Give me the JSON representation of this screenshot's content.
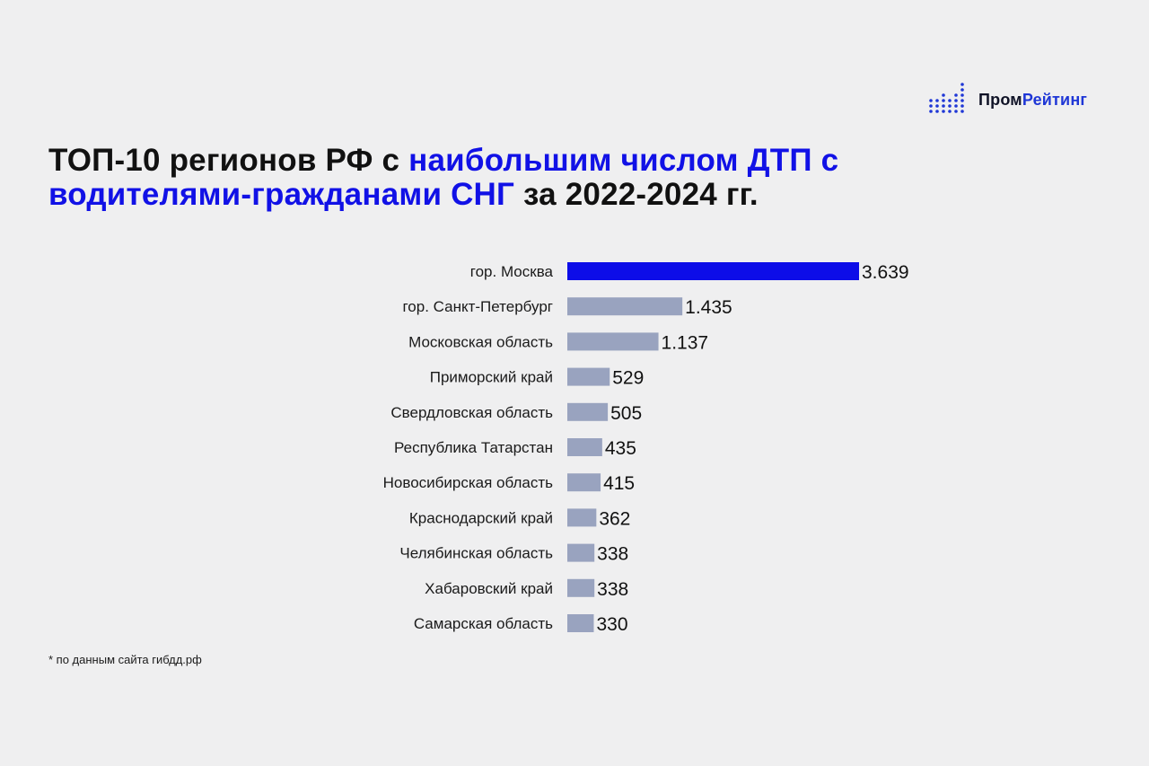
{
  "brand": {
    "name_part1": "Пром",
    "name_part2": "Рейтинг",
    "colors": {
      "brand_dark": "#0f1226",
      "brand_blue": "#1f37d6"
    }
  },
  "title": {
    "part1": "ТОП-10 регионов РФ с ",
    "part2": "наибольшим числом ДТП с водителями-гражданами СНГ",
    "part3": " за 2022-2024 гг."
  },
  "chart_data": {
    "type": "bar",
    "orientation": "horizontal",
    "categories": [
      "гор. Москва",
      "гор. Санкт-Петербург",
      "Московская область",
      "Приморский край",
      "Свердловская область",
      "Республика Татарстан",
      "Новосибирская область",
      "Краснодарский край",
      "Челябинская область",
      "Хабаровский край",
      "Самарская область"
    ],
    "values": [
      3639,
      1435,
      1137,
      529,
      505,
      435,
      415,
      362,
      338,
      338,
      330
    ],
    "value_labels": [
      "3.639",
      "1.435",
      "1.137",
      "529",
      "505",
      "435",
      "415",
      "362",
      "338",
      "338",
      "330"
    ],
    "title": "",
    "xlabel": "",
    "ylabel": "",
    "xlim": [
      0,
      3639
    ],
    "grid": false,
    "legend": "none",
    "colors": {
      "highlight": "#0d0de8",
      "default": "#99a3bf"
    },
    "highlight_index": 0
  },
  "footnote": "* по данным сайта гибдд.рф"
}
